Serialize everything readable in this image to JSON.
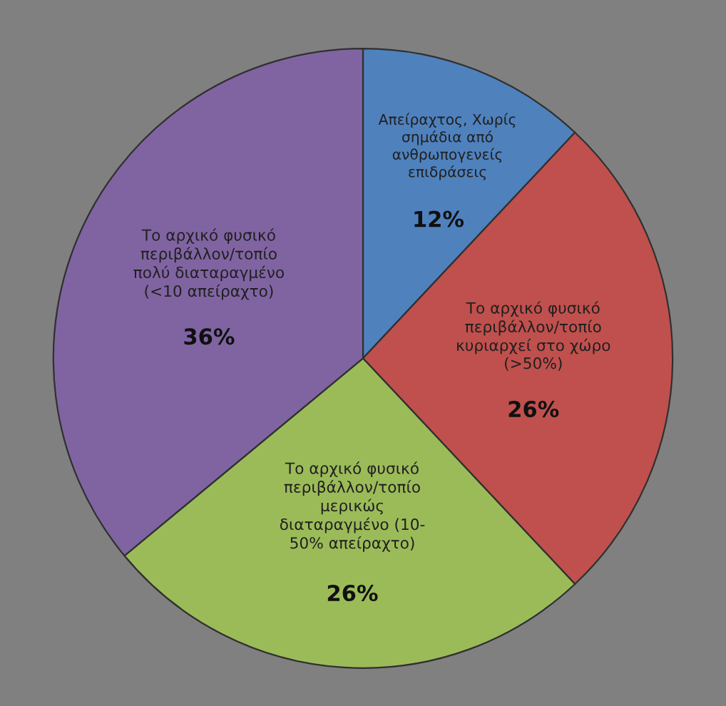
{
  "chart_data": {
    "type": "pie",
    "categories": [
      "Απείραχτος, Χωρίς\nσημάδια από\nανθρωπογενείς\nεπιδράσεις",
      "Το αρχικό φυσικό\nπεριβάλλον/τοπίο\nκυριαρχεί στο χώρο\n(>50%)",
      "Το αρχικό φυσικό\nπεριβάλλον/τοπίο\nμερικώς\nδιαταραγμένο (10-\n50% απείραχτο)",
      "Το αρχικό φυσικό\nπεριβάλλον/τοπίο\nπολύ διαταραγμένο\n(<10 απείραχτο)"
    ],
    "values": [
      12,
      26,
      26,
      36
    ],
    "colors": [
      "#4f81bd",
      "#c0504d",
      "#9bbb59",
      "#8064a2"
    ],
    "value_labels": [
      "12%",
      "26%",
      "26%",
      "36%"
    ],
    "legend": false
  }
}
